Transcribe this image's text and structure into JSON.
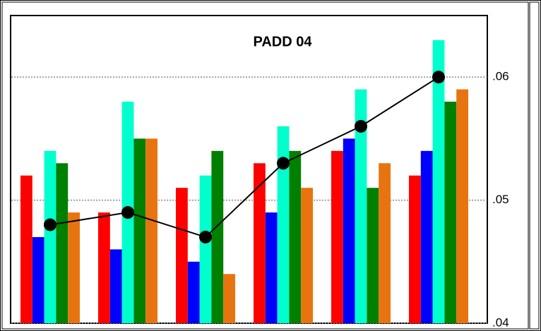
{
  "chart_data": {
    "type": "bar",
    "title": "PADD 04",
    "categories": [
      null,
      null,
      null,
      null,
      null,
      null
    ],
    "series": [
      {
        "color": "#ff0000",
        "values": [
          0.052,
          0.049,
          0.051,
          0.053,
          0.054,
          0.052
        ]
      },
      {
        "color": "#0000ff",
        "values": [
          0.047,
          0.046,
          0.045,
          0.049,
          0.055,
          0.054
        ]
      },
      {
        "color": "#00ffcc",
        "values": [
          0.054,
          0.058,
          0.052,
          0.056,
          0.059,
          0.063
        ]
      },
      {
        "color": "#008000",
        "values": [
          0.053,
          0.055,
          0.054,
          0.054,
          0.051,
          0.058
        ]
      },
      {
        "color": "#e87410",
        "values": [
          0.049,
          0.055,
          0.044,
          0.051,
          0.053,
          0.059
        ]
      },
      {
        "type": "line",
        "color": "#000000",
        "values": [
          0.048,
          0.049,
          0.047,
          0.053,
          0.056,
          0.06
        ]
      }
    ],
    "ylim": [
      0.04,
      0.065
    ],
    "yticks": [
      {
        "value": 0.04,
        "label": ".04"
      },
      {
        "value": 0.05,
        "label": ".05"
      },
      {
        "value": 0.06,
        "label": ".06"
      }
    ],
    "grid": true
  }
}
